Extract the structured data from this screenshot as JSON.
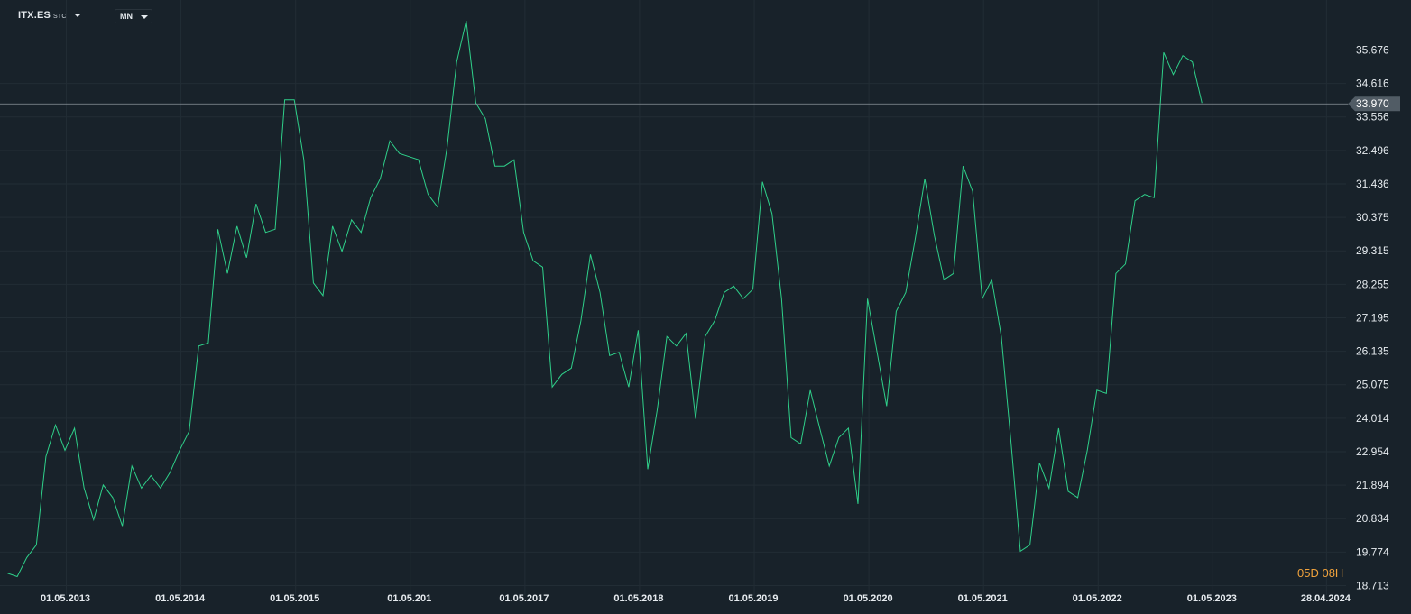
{
  "header": {
    "symbol": "ITX.ES",
    "symbol_type": "STC",
    "timeframe": "MN"
  },
  "countdown": "05D 08H",
  "colors": {
    "background": "#18222a",
    "line": "#2fd08a",
    "grid": "#222d35",
    "price_tag": "#515c65"
  },
  "chart_data": {
    "type": "line",
    "title": "",
    "xlabel": "",
    "ylabel": "",
    "ylim": [
      18.713,
      36.6
    ],
    "y_ticks": [
      "35.676",
      "34.616",
      "33.556",
      "32.496",
      "31.436",
      "30.375",
      "29.315",
      "28.255",
      "27.195",
      "26.135",
      "25.075",
      "24.014",
      "22.954",
      "21.894",
      "20.834",
      "19.774",
      "18.713"
    ],
    "x_ticks": [
      "01.05.2013",
      "01.05.2014",
      "01.05.2015",
      "01.05.201",
      "01.05.2017",
      "01.05.2018",
      "01.05.2019",
      "01.05.2020",
      "01.05.2021",
      "01.05.2022",
      "01.05.2023",
      "28.04.2024"
    ],
    "x_start": "2012-11",
    "last_price": "33.970",
    "series": [
      {
        "values": [
          19.1,
          19.0,
          19.6,
          20.0,
          22.8,
          23.8,
          23.0,
          23.7,
          21.8,
          20.8,
          21.9,
          21.5,
          20.6,
          22.5,
          21.8,
          22.2,
          21.8,
          22.3,
          23.0,
          23.6,
          26.3,
          26.4,
          30.0,
          28.6,
          30.1,
          29.1,
          30.8,
          29.9,
          30.0,
          34.1,
          34.1,
          32.2,
          28.3,
          27.9,
          30.1,
          29.3,
          30.3,
          29.9,
          31.0,
          31.6,
          32.8,
          32.4,
          32.3,
          32.2,
          31.1,
          30.7,
          32.6,
          35.3,
          36.6,
          34.0,
          33.5,
          32.0,
          32.0,
          32.2,
          29.9,
          29.0,
          28.8,
          25.0,
          25.4,
          25.6,
          27.1,
          29.2,
          28.0,
          26.0,
          26.1,
          25.0,
          26.8,
          22.4,
          24.3,
          26.6,
          26.3,
          26.7,
          24.0,
          26.6,
          27.1,
          28.0,
          28.2,
          27.8,
          28.1,
          31.5,
          30.5,
          27.8,
          23.4,
          23.2,
          24.9,
          23.7,
          22.5,
          23.4,
          23.7,
          21.3,
          27.8,
          26.1,
          24.4,
          27.4,
          28.0,
          29.7,
          31.6,
          29.8,
          28.4,
          28.6,
          32.0,
          31.2,
          27.8,
          28.4,
          26.6,
          23.3,
          19.8,
          20.0,
          22.6,
          21.8,
          23.7,
          21.7,
          21.5,
          23.0,
          24.9,
          24.8,
          28.6,
          28.9,
          30.9,
          31.1,
          31.0,
          35.6,
          34.9,
          35.5,
          35.3,
          34.0
        ]
      }
    ]
  }
}
